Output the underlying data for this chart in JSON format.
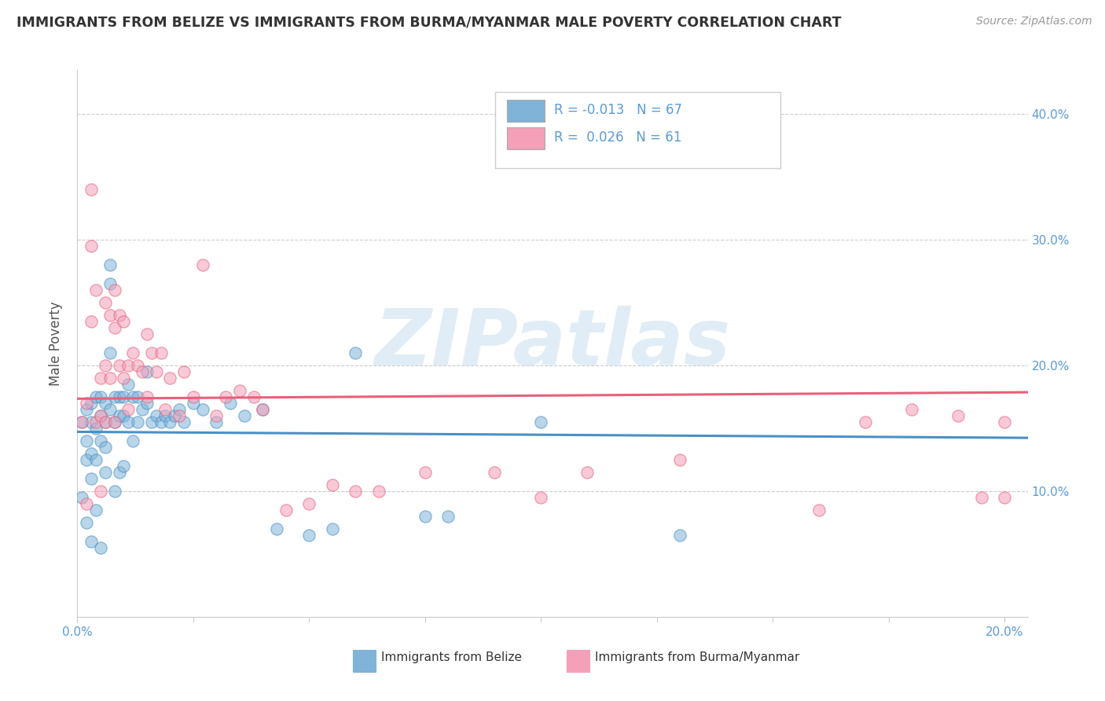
{
  "title": "IMMIGRANTS FROM BELIZE VS IMMIGRANTS FROM BURMA/MYANMAR MALE POVERTY CORRELATION CHART",
  "source": "Source: ZipAtlas.com",
  "ylabel": "Male Poverty",
  "xmin": 0.0,
  "xmax": 0.205,
  "ymin": 0.0,
  "ymax": 0.435,
  "ytick_positions": [
    0.0,
    0.1,
    0.2,
    0.3,
    0.4
  ],
  "ytick_labels_right": [
    "",
    "10.0%",
    "20.0%",
    "30.0%",
    "40.0%"
  ],
  "xtick_positions": [
    0.0,
    0.025,
    0.05,
    0.075,
    0.1,
    0.125,
    0.15,
    0.175,
    0.2
  ],
  "xtick_labels": [
    "0.0%",
    "",
    "",
    "",
    "",
    "",
    "",
    "",
    "20.0%"
  ],
  "belize_color": "#7fb3d8",
  "burma_color": "#f4a0b8",
  "belize_R": -0.013,
  "belize_N": 67,
  "burma_R": 0.026,
  "burma_N": 61,
  "belize_line_color": "#4a90c4",
  "burma_line_color": "#e8607a",
  "belize_label": "Immigrants from Belize",
  "burma_label": "Immigrants from Burma/Myanmar",
  "watermark_text": "ZIPatlas",
  "background_color": "#ffffff",
  "grid_color": "#cccccc",
  "title_color": "#333333",
  "axis_color": "#5b9bd5",
  "source_color": "#999999",
  "legend_r1": "R = -0.013",
  "legend_n1": "N = 67",
  "legend_r2": "R =  0.026",
  "legend_n2": "N = 61"
}
